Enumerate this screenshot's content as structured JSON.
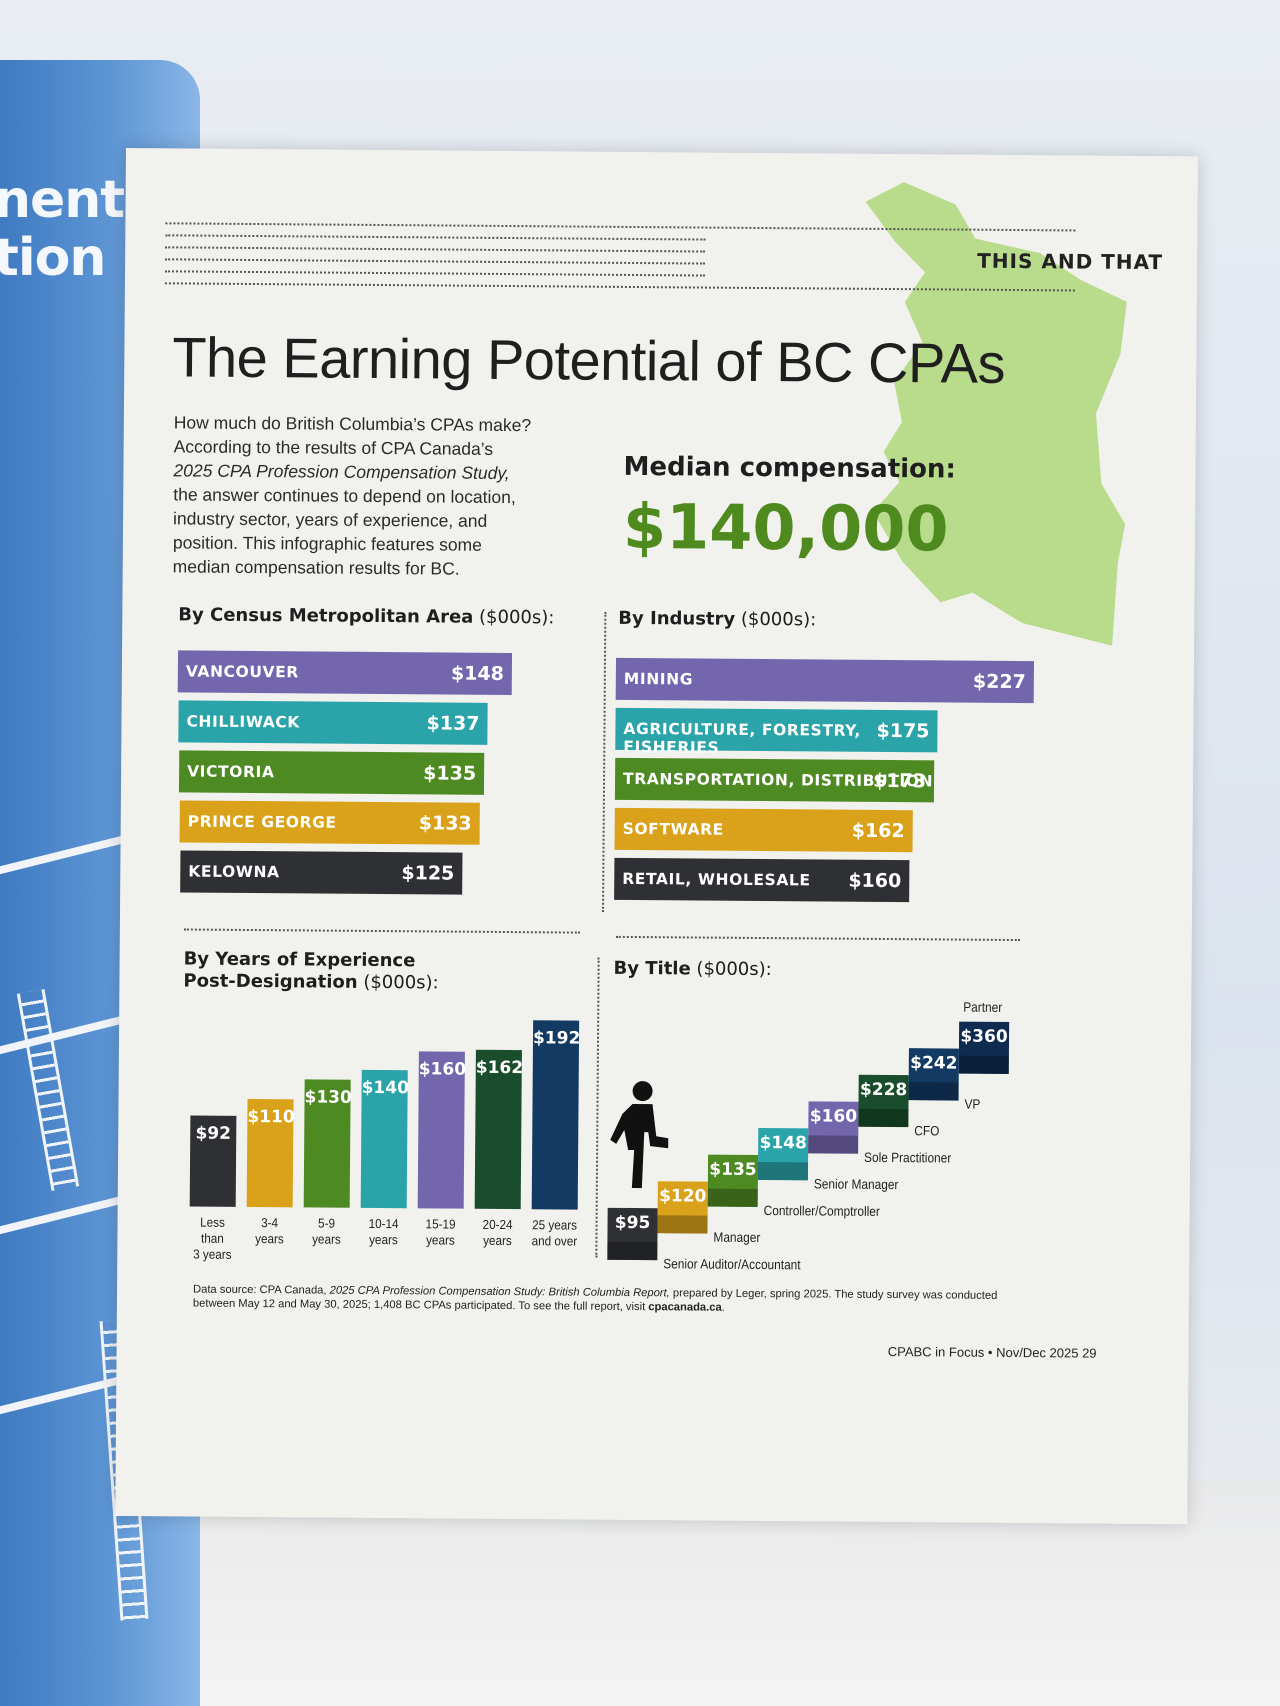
{
  "background_page": {
    "fragments": [
      "nent",
      "tion"
    ]
  },
  "section_tag": "THIS AND THAT",
  "title": "The Earning Potential of BC CPAs",
  "intro": {
    "line1": "How much do British Columbia’s CPAs make?",
    "line2": "According to the results of CPA Canada’s",
    "line3_italic": "2025 CPA Profession Compensation Study,",
    "line4": "the answer continues to depend on location,",
    "line5": "industry sector, years of experience, and",
    "line6": "position. This infographic features some",
    "line7": "median compensation results for BC."
  },
  "median": {
    "label": "Median compensation:",
    "value": "$140,000"
  },
  "colors": {
    "purple": "#7466ad",
    "teal": "#2aa3a9",
    "green": "#4e8a22",
    "gold": "#d9a21a",
    "dark": "#2f3034",
    "darkgreen": "#1a4d2c",
    "navy": "#123a63",
    "map": "#b9dc8c"
  },
  "chart_data": [
    {
      "type": "bar",
      "orientation": "horizontal",
      "title_bold": "By Census Metropolitan Area",
      "title_unit": "($000s):",
      "categories": [
        "VANCOUVER",
        "CHILLIWACK",
        "VICTORIA",
        "PRINCE GEORGE",
        "KELOWNA"
      ],
      "values": [
        148,
        137,
        135,
        133,
        125
      ],
      "value_labels": [
        "$148",
        "$137",
        "$135",
        "$133",
        "$125"
      ],
      "colors": [
        "#7466ad",
        "#2aa3a9",
        "#4e8a22",
        "#d9a21a",
        "#2f3034"
      ]
    },
    {
      "type": "bar",
      "orientation": "horizontal",
      "title_bold": "By Industry",
      "title_unit": "($000s):",
      "categories": [
        "MINING",
        "AGRICULTURE, FORESTRY, FISHERIES",
        "TRANSPORTATION, DISTRIBUTION",
        "SOFTWARE",
        "RETAIL, WHOLESALE"
      ],
      "values": [
        227,
        175,
        173,
        162,
        160
      ],
      "value_labels": [
        "$227",
        "$175",
        "$173",
        "$162",
        "$160"
      ],
      "colors": [
        "#7466ad",
        "#2aa3a9",
        "#4e8a22",
        "#d9a21a",
        "#2f3034"
      ]
    },
    {
      "type": "bar",
      "orientation": "vertical",
      "title_bold_line1": "By Years of Experience",
      "title_bold_line2": "Post-Designation",
      "title_unit": "($000s):",
      "categories": [
        [
          "Less than",
          "3 years"
        ],
        [
          "3-4",
          "years"
        ],
        [
          "5-9",
          "years"
        ],
        [
          "10-14",
          "years"
        ],
        [
          "15-19",
          "years"
        ],
        [
          "20-24",
          "years"
        ],
        [
          "25 years",
          "and over"
        ]
      ],
      "values": [
        92,
        110,
        130,
        140,
        160,
        162,
        192
      ],
      "value_labels": [
        "$92",
        "$110",
        "$130",
        "$140",
        "$160",
        "$162",
        "$192"
      ],
      "colors": [
        "#2f3034",
        "#d9a21a",
        "#4e8a22",
        "#2aa3a9",
        "#7466ad",
        "#1a4d2c",
        "#123a63"
      ]
    },
    {
      "type": "bar",
      "orientation": "staircase",
      "title_bold": "By Title",
      "title_unit": "($000s):",
      "categories": [
        "Senior Auditor/Accountant",
        "Manager",
        "Controller/Comptroller",
        "Senior Manager",
        "Sole Practitioner",
        "CFO",
        "VP",
        "Partner"
      ],
      "values": [
        95,
        120,
        135,
        148,
        160,
        228,
        242,
        360
      ],
      "value_labels": [
        "$95",
        "$120",
        "$135",
        "$148",
        "$160",
        "$228",
        "$242",
        "$360"
      ],
      "colors": [
        "#2f3034",
        "#d9a21a",
        "#4e8a22",
        "#2aa3a9",
        "#7466ad",
        "#1a4d2c",
        "#123a63",
        "#0f2b4f"
      ]
    }
  ],
  "footnote": {
    "lead": "Data source: CPA Canada,",
    "italic": "2025 CPA Profession Compensation Study: British Columbia Report,",
    "rest": "prepared by Leger, spring 2025. The study survey was conducted between May 12 and May 30, 2025; 1,408 BC CPAs participated. To see the full report, visit",
    "link": "cpacanada.ca",
    "end": "."
  },
  "folio": "CPABC in Focus • Nov/Dec 2025   29"
}
